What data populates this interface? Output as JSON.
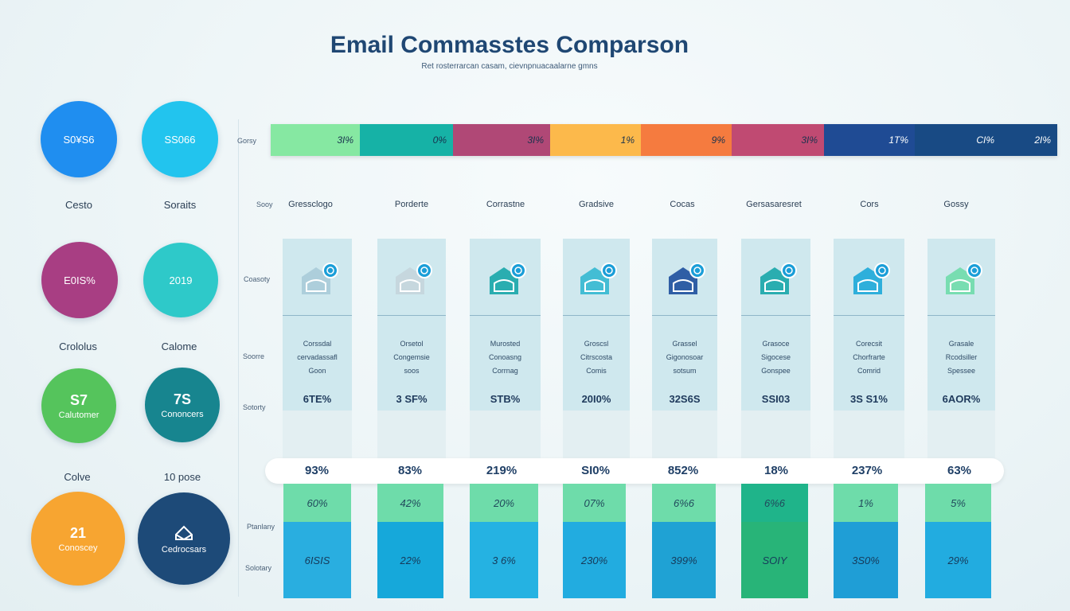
{
  "header": {
    "title": "Email Commasstes Comparson",
    "subtitle": "Ret rosterrarcan casam, cievnpnuacaalarne gmns"
  },
  "circles": [
    {
      "value": "S0¥S6",
      "sub": "",
      "label": "Cesto",
      "color": "#1f8ef0"
    },
    {
      "value": "SS066",
      "sub": "",
      "label": "Soraits",
      "color": "#22c4ee"
    },
    {
      "value": "E0IS%",
      "sub": "",
      "label": "Crololus",
      "color": "#a83e83"
    },
    {
      "value": "2019",
      "sub": "",
      "label": "Calome",
      "color": "#2ec9c9"
    },
    {
      "value": "S7",
      "sub": "Calutomer",
      "label": "Colve",
      "color": "#55c45c"
    },
    {
      "value": "7S",
      "sub": "Cononcers",
      "label": "10 pose",
      "color": "#17858f"
    },
    {
      "value": "21",
      "sub": "Conoscey",
      "label": "",
      "color": "#f7a531"
    },
    {
      "value": "",
      "sub": "Cedrocsars",
      "label": "",
      "color": "#1d4a78"
    }
  ],
  "row_labels": {
    "bar": "Gorsy",
    "names": "Sooy",
    "icons": "Coasoty",
    "desc": "Soorre",
    "vals": "Sotorty",
    "stack_top": "Ptanlany",
    "stack_bot": "Solotary"
  },
  "chart_data": {
    "type": "bar",
    "title": "Email Commasstes Comparson",
    "segments": [
      {
        "label": "3I%",
        "color": "#86e8a2"
      },
      {
        "label": "0%",
        "color": "#16b2a6"
      },
      {
        "label": "3I%",
        "color": "#b04876"
      },
      {
        "label": "1%",
        "color": "#fcb94b"
      },
      {
        "label": "9%",
        "color": "#f57b3f"
      },
      {
        "label": "3I%",
        "color": "#c04a72"
      },
      {
        "label": "1T%",
        "color": "#1f4b94"
      },
      {
        "label": "CI%",
        "color": "#184a84"
      },
      {
        "label": "2I%",
        "color": "#184a84"
      }
    ],
    "categories": [
      "Gressclogo",
      "Porderte",
      "Corrastne",
      "Gradsive",
      "Cocas",
      "Gersasaresret",
      "Cors",
      "Gossy"
    ],
    "descriptions": [
      [
        "Corssdal",
        "cervadassafl",
        "Goon"
      ],
      [
        "Orsetol",
        "Congemsie",
        "soos"
      ],
      [
        "Murosted",
        "Conoasng",
        "Corrnag"
      ],
      [
        "Groscsl",
        "Citrscosta",
        "Comis"
      ],
      [
        "Grassel",
        "Gigonosoar",
        "sotsum"
      ],
      [
        "Grasoce",
        "Sigocese",
        "Gonspee"
      ],
      [
        "Corecsit",
        "Chorfrarte",
        "Comrid"
      ],
      [
        "Grasale",
        "Rcodsiller",
        "Spessee"
      ]
    ],
    "card_values": [
      "6TE%",
      "3 SF%",
      "STB%",
      "20I0%",
      "32S6S",
      "SSI03",
      "3S S1%",
      "6AOR%"
    ],
    "percent_row": [
      "93%",
      "83%",
      "219%",
      "SI0%",
      "852%",
      "18%",
      "237%",
      "63%"
    ],
    "stack_top": [
      "60%",
      "42%",
      "20%",
      "07%",
      "6%6",
      "6%6",
      "1%",
      "5%"
    ],
    "stack_bottom": [
      "6ISIS",
      "22%",
      "3 6%",
      "230%",
      "399%",
      "SOIY",
      "3S0%",
      "29%"
    ],
    "stack_top_colors": [
      "#6edcaa",
      "#6edcaa",
      "#6edcaa",
      "#6edcaa",
      "#6edcaa",
      "#1fb48a",
      "#6edcaa",
      "#6edcaa"
    ],
    "stack_bottom_colors": [
      "#29aee0",
      "#16a8da",
      "#25b2e2",
      "#22ace0",
      "#1fa2d4",
      "#28b478",
      "#1f9ed6",
      "#22ace0"
    ],
    "icon_colors": [
      "#a9cbd8",
      "#c4d5dc",
      "#17a6a8",
      "#33b8d0",
      "#1d4f9c",
      "#17a6a8",
      "#1ca8d8",
      "#6edcaa"
    ]
  }
}
